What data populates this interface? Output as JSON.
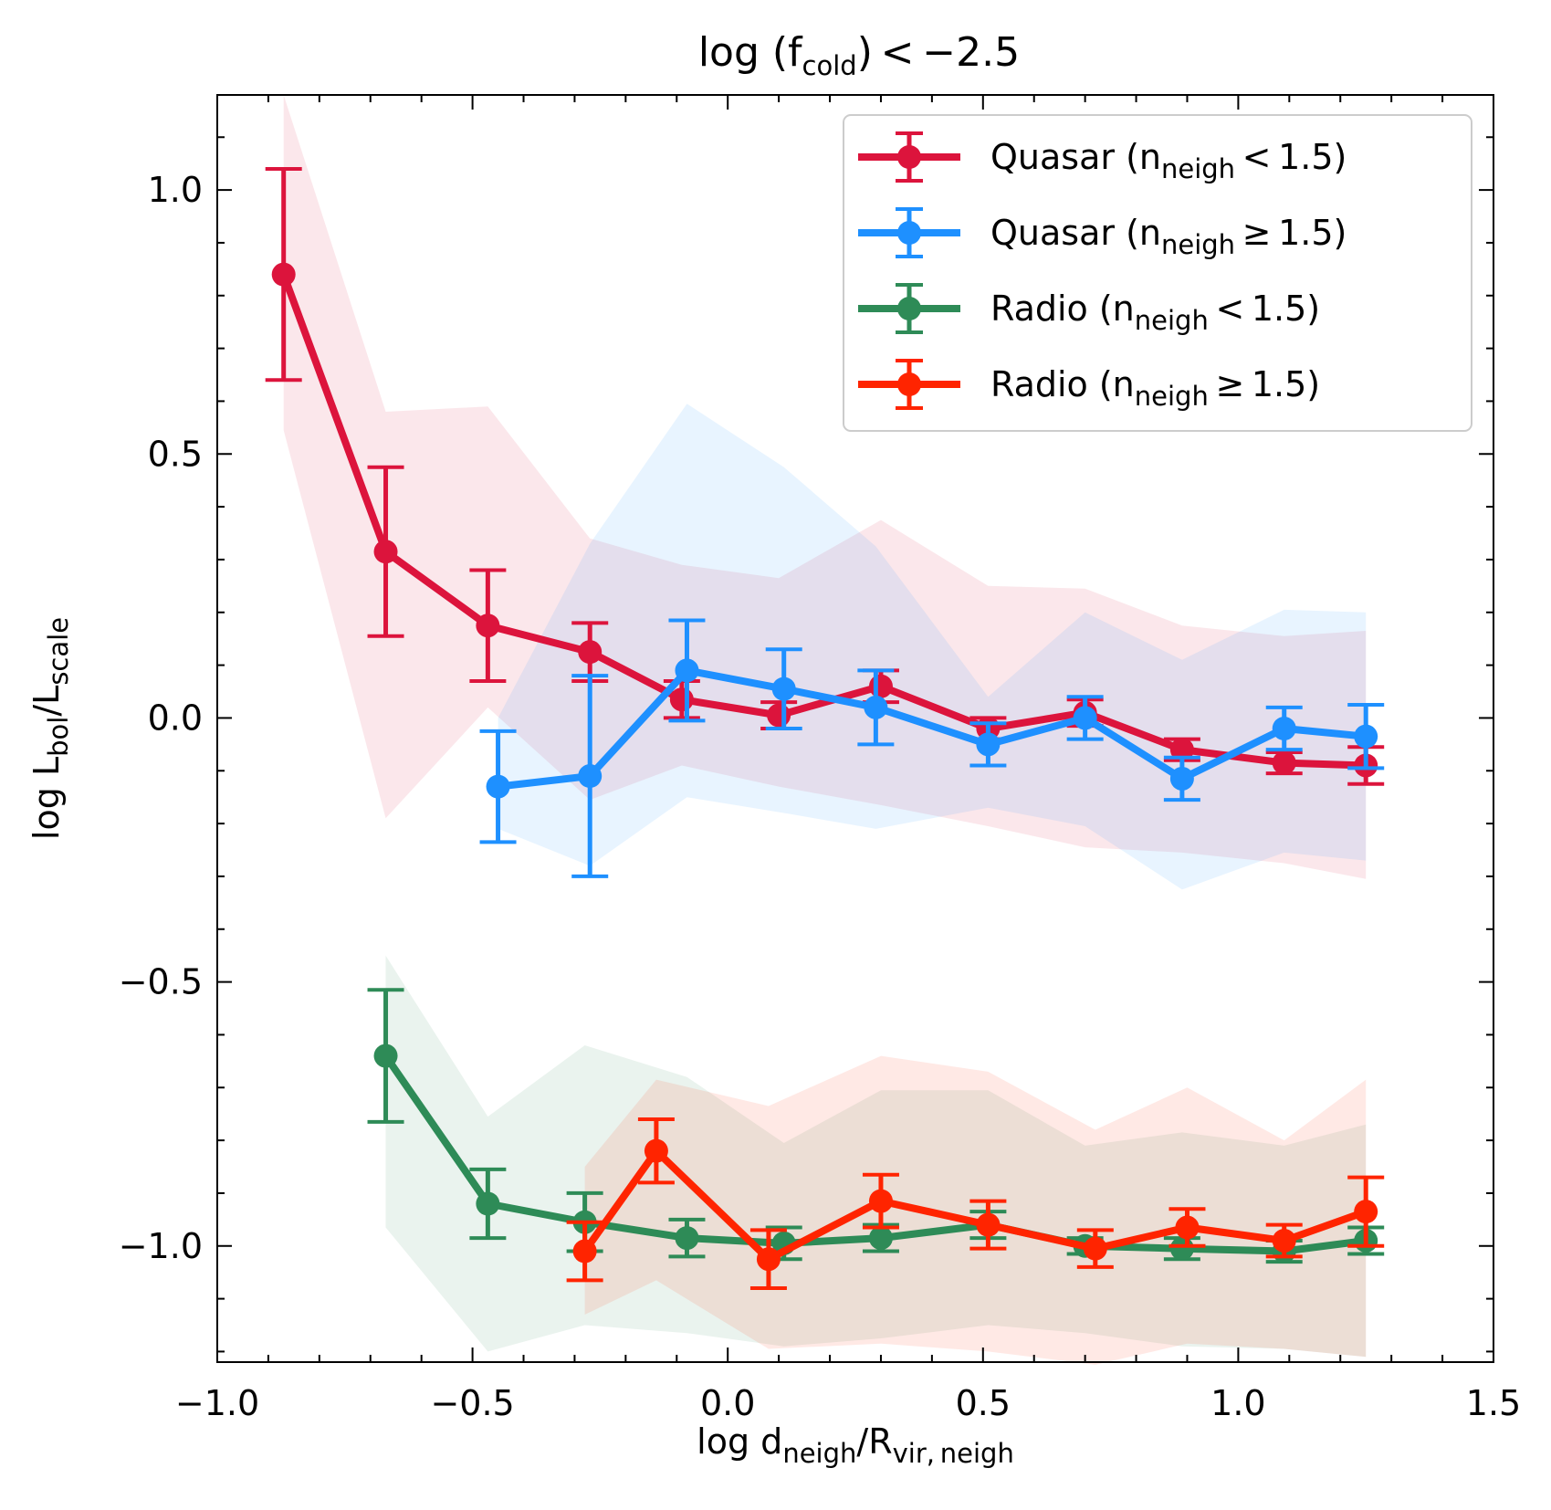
{
  "chart_data": {
    "type": "line",
    "title": {
      "pre": "log (f",
      "sub": "cold",
      "post": ") < −2.5"
    },
    "xlabel": {
      "pre": "log d",
      "sub1": "neigh",
      "mid": "/R",
      "sub2": "vir, neigh"
    },
    "ylabel": {
      "pre": "log L",
      "sub1": "bol",
      "mid": "/L",
      "sub2": "scale"
    },
    "xlim": [
      -1.0,
      1.5
    ],
    "ylim": [
      -1.22,
      1.18
    ],
    "xticks": [
      -1.0,
      -0.5,
      0.0,
      0.5,
      1.0,
      1.5
    ],
    "xtick_labels": [
      "−1.0",
      "−0.5",
      "0.0",
      "0.5",
      "1.0",
      "1.5"
    ],
    "yticks": [
      -1.0,
      -0.5,
      0.0,
      0.5,
      1.0
    ],
    "ytick_labels": [
      "−1.0",
      "−0.5",
      "0.0",
      "0.5",
      "1.0"
    ],
    "minor_step": 0.1,
    "legend_position": "upper right",
    "series": [
      {
        "name": "Quasar (n_neigh < 1.5)",
        "label": {
          "pre": "Quasar (n",
          "sub": "neigh",
          "post": " < 1.5)"
        },
        "color": "#DC143C",
        "x": [
          -0.87,
          -0.67,
          -0.47,
          -0.27,
          -0.09,
          0.1,
          0.3,
          0.51,
          0.7,
          0.89,
          1.09,
          1.25
        ],
        "y": [
          0.84,
          0.315,
          0.175,
          0.125,
          0.035,
          0.005,
          0.06,
          -0.02,
          0.01,
          -0.06,
          -0.085,
          -0.09
        ],
        "yerr": [
          0.2,
          0.16,
          0.105,
          0.055,
          0.035,
          0.025,
          0.03,
          0.02,
          0.025,
          0.02,
          0.02,
          0.035
        ],
        "band_lo": [
          0.545,
          -0.19,
          0.02,
          -0.155,
          -0.09,
          -0.13,
          -0.165,
          -0.205,
          -0.245,
          -0.255,
          -0.275,
          -0.305
        ],
        "band_hi": [
          1.18,
          0.58,
          0.59,
          0.34,
          0.29,
          0.265,
          0.375,
          0.25,
          0.245,
          0.175,
          0.155,
          0.165
        ]
      },
      {
        "name": "Quasar (n_neigh ≥ 1.5)",
        "label": {
          "pre": "Quasar (n",
          "sub": "neigh",
          "post": " ≥ 1.5)"
        },
        "color": "#1E90FF",
        "x": [
          -0.45,
          -0.27,
          -0.08,
          0.11,
          0.29,
          0.51,
          0.7,
          0.89,
          1.09,
          1.25
        ],
        "y": [
          -0.13,
          -0.11,
          0.09,
          0.055,
          0.02,
          -0.05,
          0.0,
          -0.115,
          -0.02,
          -0.035
        ],
        "yerr": [
          0.105,
          0.19,
          0.095,
          0.075,
          0.07,
          0.04,
          0.04,
          0.04,
          0.04,
          0.06
        ],
        "band_lo": [
          -0.21,
          -0.28,
          -0.15,
          -0.18,
          -0.21,
          -0.17,
          -0.205,
          -0.325,
          -0.255,
          -0.27
        ],
        "band_hi": [
          0.0,
          0.33,
          0.595,
          0.475,
          0.325,
          0.04,
          0.2,
          0.11,
          0.205,
          0.2
        ]
      },
      {
        "name": "Radio (n_neigh < 1.5)",
        "label": {
          "pre": "Radio (n",
          "sub": "neigh",
          "post": " < 1.5)"
        },
        "color": "#2E8B57",
        "x": [
          -0.67,
          -0.47,
          -0.28,
          -0.08,
          0.11,
          0.3,
          0.51,
          0.7,
          0.89,
          1.09,
          1.25
        ],
        "y": [
          -0.64,
          -0.92,
          -0.955,
          -0.985,
          -0.995,
          -0.985,
          -0.96,
          -1.0,
          -1.005,
          -1.01,
          -0.99
        ],
        "yerr": [
          0.125,
          0.065,
          0.055,
          0.035,
          0.03,
          0.025,
          0.025,
          0.015,
          0.02,
          0.02,
          0.025
        ],
        "band_lo": [
          -0.965,
          -1.2,
          -1.15,
          -1.165,
          -1.19,
          -1.175,
          -1.15,
          -1.165,
          -1.19,
          -1.195,
          -1.21
        ],
        "band_hi": [
          -0.45,
          -0.755,
          -0.62,
          -0.68,
          -0.805,
          -0.705,
          -0.705,
          -0.81,
          -0.785,
          -0.81,
          -0.77
        ]
      },
      {
        "name": "Radio (n_neigh ≥ 1.5)",
        "label": {
          "pre": "Radio (n",
          "sub": "neigh",
          "post": " ≥ 1.5)"
        },
        "color": "#FF2400",
        "x": [
          -0.28,
          -0.14,
          0.08,
          0.3,
          0.51,
          0.72,
          0.9,
          1.09,
          1.25
        ],
        "y": [
          -1.01,
          -0.82,
          -1.025,
          -0.915,
          -0.96,
          -1.005,
          -0.965,
          -0.99,
          -0.935
        ],
        "yerr": [
          0.055,
          0.06,
          0.055,
          0.05,
          0.045,
          0.035,
          0.035,
          0.03,
          0.065
        ],
        "band_lo": [
          -1.13,
          -1.065,
          -1.195,
          -1.185,
          -1.2,
          -1.225,
          -1.185,
          -1.195,
          -1.21
        ],
        "band_hi": [
          -0.85,
          -0.685,
          -0.735,
          -0.64,
          -0.67,
          -0.78,
          -0.7,
          -0.8,
          -0.685
        ]
      }
    ]
  }
}
